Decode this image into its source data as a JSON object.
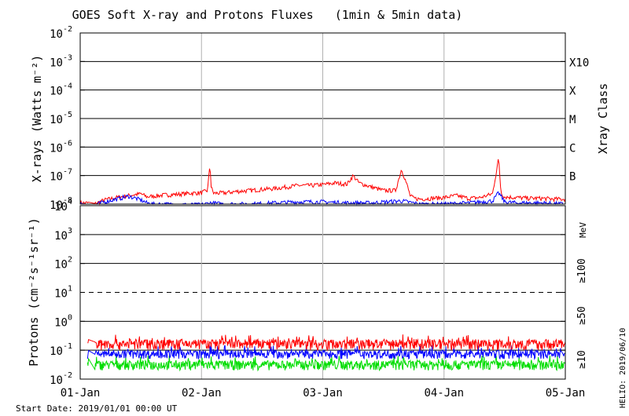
{
  "chart_data": [
    {
      "type": "line",
      "title": "GOES Soft X-ray and Protons Fluxes   (1min & 5min data)",
      "ylabel": "X-rays (Watts m⁻²)",
      "y_scale": "log",
      "ylim": [
        1e-08,
        0.01
      ],
      "y_ticks": [
        {
          "value": 1e-08,
          "base": "10",
          "exp": "-8"
        },
        {
          "value": 1e-07,
          "base": "10",
          "exp": "-7"
        },
        {
          "value": 1e-06,
          "base": "10",
          "exp": "-6"
        },
        {
          "value": 1e-05,
          "base": "10",
          "exp": "-5"
        },
        {
          "value": 0.0001,
          "base": "10",
          "exp": "-4"
        },
        {
          "value": 0.001,
          "base": "10",
          "exp": "-3"
        },
        {
          "value": 0.01,
          "base": "10",
          "exp": "-2"
        }
      ],
      "right_axis_label": "Xray Class",
      "flare_classes": [
        {
          "label": "B",
          "value": 1e-07
        },
        {
          "label": "C",
          "value": 1e-06
        },
        {
          "label": "M",
          "value": 1e-05
        },
        {
          "label": "X",
          "value": 0.0001
        },
        {
          "label": "X10",
          "value": 0.001
        }
      ],
      "x_days": [
        0,
        4
      ],
      "series": [
        {
          "color": "#ff0000",
          "x": [
            0.0,
            0.08,
            0.12,
            0.14,
            0.2,
            0.3,
            0.4,
            0.5,
            0.55,
            0.6,
            0.7,
            0.8,
            0.9,
            1.0,
            1.05,
            1.07,
            1.08,
            1.1,
            1.2,
            1.3,
            1.4,
            1.5,
            1.6,
            1.7,
            1.8,
            1.9,
            2.0,
            2.1,
            2.2,
            2.25,
            2.3,
            2.4,
            2.5,
            2.6,
            2.65,
            2.7,
            2.72,
            2.75,
            2.8,
            2.9,
            3.0,
            3.1,
            3.2,
            3.3,
            3.4,
            3.45,
            3.47,
            3.5,
            3.6,
            3.7,
            3.8,
            3.9,
            4.0
          ],
          "y": [
            1.1e-08,
            1.1e-08,
            1e-08,
            1.1e-08,
            1.4e-08,
            1.7e-08,
            2e-08,
            2.3e-08,
            1.8e-08,
            1.9e-08,
            2.1e-08,
            2.2e-08,
            2.4e-08,
            2.5e-08,
            3e-08,
            2.6e-07,
            4e-08,
            2.4e-08,
            2.5e-08,
            2.8e-08,
            3e-08,
            3.3e-08,
            3.5e-08,
            4e-08,
            4.5e-08,
            4.5e-08,
            4.8e-08,
            5.5e-08,
            5e-08,
            1e-07,
            5.5e-08,
            4e-08,
            3e-08,
            3e-08,
            1.7e-07,
            4e-08,
            2e-08,
            1.6e-08,
            1.5e-08,
            1.6e-08,
            1.7e-08,
            2e-08,
            1.6e-08,
            1.7e-08,
            2.3e-08,
            4e-07,
            2.5e-08,
            1.8e-08,
            1.7e-08,
            1.6e-08,
            1.6e-08,
            1.5e-08,
            1.5e-08
          ]
        },
        {
          "color": "#0000ff",
          "x": [
            0.0,
            0.08,
            0.12,
            0.14,
            0.2,
            0.3,
            0.4,
            0.5,
            0.55,
            0.6,
            0.7,
            0.8,
            1.0,
            1.07,
            1.2,
            1.4,
            1.6,
            1.8,
            2.0,
            2.2,
            2.4,
            2.65,
            2.8,
            3.0,
            3.2,
            3.4,
            3.45,
            3.5,
            3.6,
            3.8,
            4.0
          ],
          "y": [
            1e-08,
            1e-08,
            9e-09,
            1e-08,
            1.2e-08,
            1.5e-08,
            1.9e-08,
            1.4e-08,
            1.1e-08,
            1e-08,
            1e-08,
            9.5e-09,
            9.5e-09,
            1.1e-08,
            1e-08,
            1e-08,
            1.1e-08,
            1.2e-08,
            1.2e-08,
            1.1e-08,
            1.1e-08,
            1.3e-08,
            1e-08,
            1e-08,
            1.1e-08,
            1.3e-08,
            2.5e-08,
            1.2e-08,
            1.1e-08,
            1.1e-08,
            1e-08
          ]
        }
      ]
    },
    {
      "type": "line",
      "ylabel": "Protons (cm⁻²s⁻¹sr⁻¹)",
      "y_scale": "log",
      "ylim": [
        0.01,
        10000
      ],
      "y_ticks": [
        {
          "value": 0.01,
          "base": "10",
          "exp": "-2"
        },
        {
          "value": 0.1,
          "base": "10",
          "exp": "-1"
        },
        {
          "value": 1,
          "base": "10",
          "exp": "0"
        },
        {
          "value": 10,
          "base": "10",
          "exp": "1"
        },
        {
          "value": 100,
          "base": "10",
          "exp": "2"
        },
        {
          "value": 1000,
          "base": "10",
          "exp": "3"
        },
        {
          "value": 10000,
          "base": "10",
          "exp": "4"
        }
      ],
      "threshold": 10,
      "x_ticks": [
        "01-Jan",
        "02-Jan",
        "03-Jan",
        "04-Jan",
        "05-Jan"
      ],
      "x_days": [
        0,
        4
      ],
      "series": [
        {
          "name": "≥10",
          "color": "#ff0000",
          "base": 0.17,
          "spread": 0.07,
          "start": 0.0
        },
        {
          "name": "≥50",
          "color": "#0000ff",
          "base": 0.075,
          "spread": 0.025,
          "start": 0.0
        },
        {
          "name": "≥100",
          "color": "#00dd00",
          "base": 0.032,
          "spread": 0.012,
          "start": 0.0
        }
      ],
      "right_unit": "MeV"
    }
  ],
  "footer": {
    "start_date": "Start Date: 2019/01/01 00:00 UT",
    "stamp": "HELIO: 2019/06/10"
  }
}
